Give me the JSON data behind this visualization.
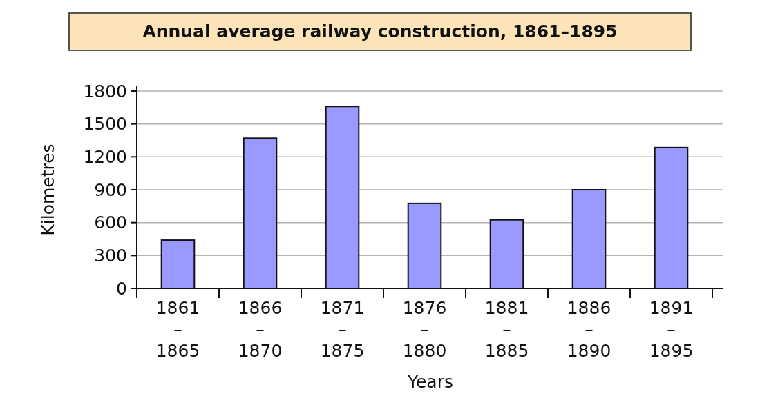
{
  "chart_data": {
    "type": "bar",
    "title": "Annual average railway construction, 1861–1895",
    "xlabel": "Years",
    "ylabel": "Kilometres",
    "categories": [
      "1861–1865",
      "1866–1870",
      "1871–1875",
      "1876–1880",
      "1881–1885",
      "1886–1890",
      "1891–1895"
    ],
    "values": [
      440,
      1370,
      1660,
      775,
      625,
      900,
      1285
    ],
    "color": "#9999ff",
    "ylim": [
      0,
      1800
    ],
    "yticks": [
      0,
      300,
      600,
      900,
      1200,
      1500,
      1800
    ],
    "grid": "y"
  }
}
